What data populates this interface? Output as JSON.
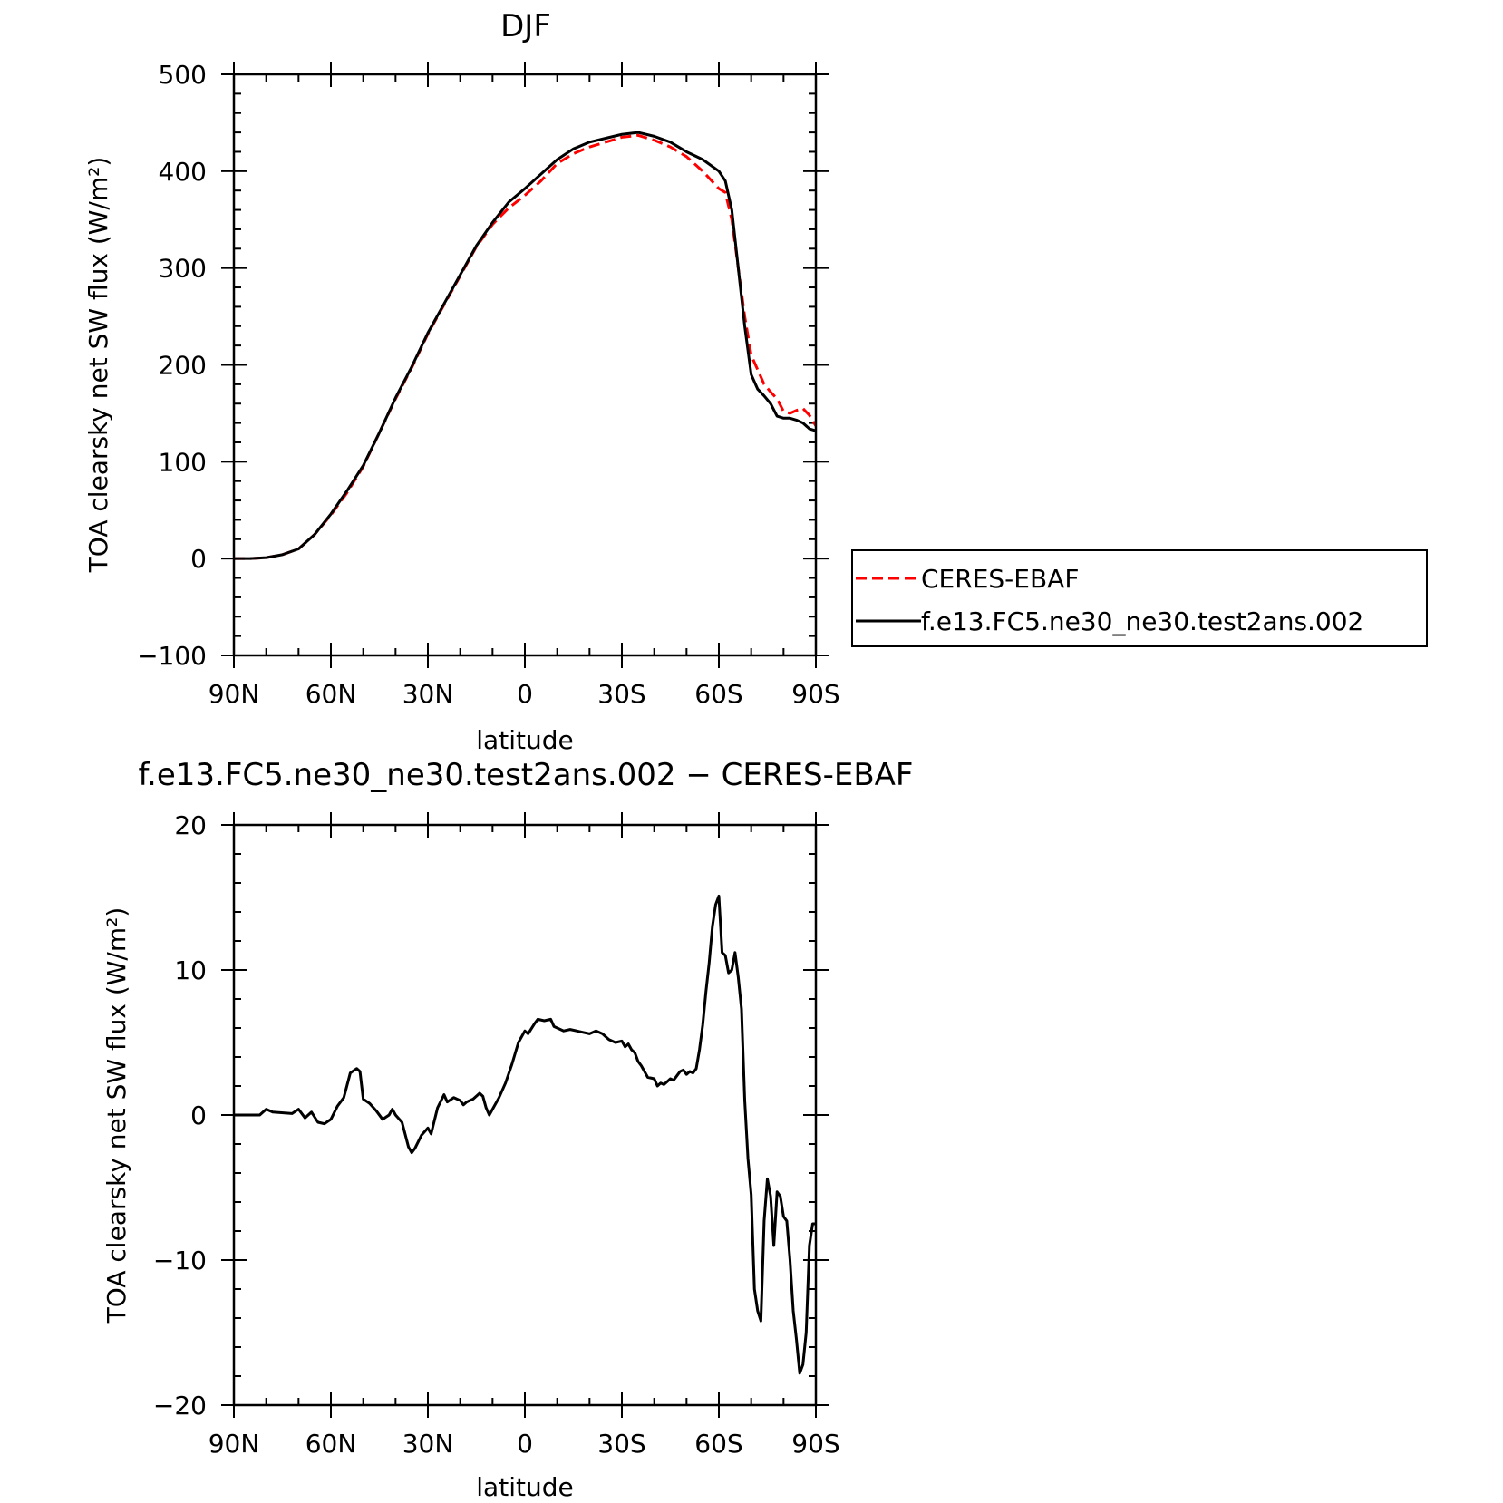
{
  "chart_data": [
    {
      "type": "line",
      "title": "DJF",
      "xlabel": "latitude",
      "ylabel": "TOA clearsky net SW flux (W/m²)",
      "xlim": [
        90,
        -90
      ],
      "ylim": [
        -100,
        500
      ],
      "x_ticks": [
        90,
        60,
        30,
        0,
        -30,
        -60,
        -90
      ],
      "x_tick_labels": [
        "90N",
        "60N",
        "30N",
        "0",
        "30S",
        "60S",
        "90S"
      ],
      "y_ticks": [
        -100,
        0,
        100,
        200,
        300,
        400,
        500
      ],
      "y_tick_labels": [
        "−100",
        "0",
        "100",
        "200",
        "300",
        "400",
        "500"
      ],
      "legend_position": "right",
      "series": [
        {
          "name": "CERES-EBAF",
          "color": "#ff0000",
          "dash": "dashed",
          "points": [
            [
              90,
              0
            ],
            [
              85,
              0
            ],
            [
              80,
              1
            ],
            [
              75,
              4
            ],
            [
              70,
              10
            ],
            [
              65,
              25
            ],
            [
              60,
              45
            ],
            [
              55,
              68
            ],
            [
              50,
              95
            ],
            [
              45,
              130
            ],
            [
              40,
              165
            ],
            [
              35,
              197
            ],
            [
              30,
              232
            ],
            [
              25,
              262
            ],
            [
              20,
              292
            ],
            [
              15,
              322
            ],
            [
              10,
              345
            ],
            [
              5,
              362
            ],
            [
              0,
              375
            ],
            [
              -5,
              390
            ],
            [
              -10,
              408
            ],
            [
              -15,
              418
            ],
            [
              -20,
              425
            ],
            [
              -25,
              430
            ],
            [
              -30,
              435
            ],
            [
              -35,
              437
            ],
            [
              -40,
              432
            ],
            [
              -45,
              425
            ],
            [
              -50,
              415
            ],
            [
              -55,
              400
            ],
            [
              -60,
              382
            ],
            [
              -62,
              378
            ],
            [
              -64,
              350
            ],
            [
              -66,
              300
            ],
            [
              -68,
              250
            ],
            [
              -70,
              210
            ],
            [
              -72,
              195
            ],
            [
              -74,
              180
            ],
            [
              -76,
              172
            ],
            [
              -78,
              165
            ],
            [
              -80,
              152
            ],
            [
              -82,
              150
            ],
            [
              -84,
              153
            ],
            [
              -86,
              155
            ],
            [
              -88,
              148
            ],
            [
              -90,
              137
            ]
          ]
        },
        {
          "name": "f.e13.FC5.ne30_ne30.test2ans.002",
          "color": "#000000",
          "dash": "solid",
          "points": [
            [
              90,
              0
            ],
            [
              85,
              0
            ],
            [
              80,
              1
            ],
            [
              75,
              4
            ],
            [
              70,
              10
            ],
            [
              65,
              25
            ],
            [
              60,
              46
            ],
            [
              55,
              70
            ],
            [
              50,
              96
            ],
            [
              45,
              130
            ],
            [
              40,
              166
            ],
            [
              35,
              198
            ],
            [
              30,
              233
            ],
            [
              25,
              263
            ],
            [
              20,
              293
            ],
            [
              15,
              323
            ],
            [
              10,
              347
            ],
            [
              5,
              368
            ],
            [
              0,
              382
            ],
            [
              -5,
              397
            ],
            [
              -10,
              412
            ],
            [
              -15,
              423
            ],
            [
              -20,
              430
            ],
            [
              -25,
              434
            ],
            [
              -30,
              438
            ],
            [
              -35,
              440
            ],
            [
              -40,
              436
            ],
            [
              -45,
              430
            ],
            [
              -50,
              420
            ],
            [
              -55,
              412
            ],
            [
              -60,
              400
            ],
            [
              -62,
              390
            ],
            [
              -64,
              360
            ],
            [
              -66,
              300
            ],
            [
              -68,
              240
            ],
            [
              -70,
              190
            ],
            [
              -72,
              175
            ],
            [
              -74,
              168
            ],
            [
              -76,
              160
            ],
            [
              -78,
              147
            ],
            [
              -80,
              145
            ],
            [
              -82,
              145
            ],
            [
              -84,
              143
            ],
            [
              -86,
              140
            ],
            [
              -88,
              134
            ],
            [
              -90,
              132
            ]
          ]
        }
      ]
    },
    {
      "type": "line",
      "title": "f.e13.FC5.ne30_ne30.test2ans.002 − CERES-EBAF",
      "xlabel": "latitude",
      "ylabel": "TOA clearsky net SW flux (W/m²)",
      "xlim": [
        90,
        -90
      ],
      "ylim": [
        -20,
        20
      ],
      "x_ticks": [
        90,
        60,
        30,
        0,
        -30,
        -60,
        -90
      ],
      "x_tick_labels": [
        "90N",
        "60N",
        "30N",
        "0",
        "30S",
        "60S",
        "90S"
      ],
      "y_ticks": [
        -20,
        -10,
        0,
        10,
        20
      ],
      "y_tick_labels": [
        "−20",
        "−10",
        "0",
        "10",
        "20"
      ],
      "series": [
        {
          "color": "#000000",
          "dash": "solid",
          "points": [
            [
              90,
              0
            ],
            [
              82,
              0
            ],
            [
              80,
              0.4
            ],
            [
              78,
              0.2
            ],
            [
              72,
              0.1
            ],
            [
              70,
              0.4
            ],
            [
              68,
              -0.2
            ],
            [
              66,
              0.2
            ],
            [
              64,
              -0.5
            ],
            [
              62,
              -0.6
            ],
            [
              60,
              -0.3
            ],
            [
              58,
              0.6
            ],
            [
              56,
              1.2
            ],
            [
              54,
              2.9
            ],
            [
              52,
              3.2
            ],
            [
              51,
              3.0
            ],
            [
              50,
              1.1
            ],
            [
              48,
              0.8
            ],
            [
              46,
              0.3
            ],
            [
              44,
              -0.3
            ],
            [
              42,
              0
            ],
            [
              41,
              0.4
            ],
            [
              40,
              0
            ],
            [
              38,
              -0.5
            ],
            [
              36,
              -2.2
            ],
            [
              35,
              -2.6
            ],
            [
              34,
              -2.3
            ],
            [
              32,
              -1.4
            ],
            [
              30,
              -0.9
            ],
            [
              29,
              -1.3
            ],
            [
              28,
              -0.4
            ],
            [
              27,
              0.5
            ],
            [
              25,
              1.4
            ],
            [
              24,
              0.9
            ],
            [
              22,
              1.2
            ],
            [
              20,
              1.0
            ],
            [
              19,
              0.7
            ],
            [
              18,
              0.9
            ],
            [
              16,
              1.1
            ],
            [
              14,
              1.5
            ],
            [
              13,
              1.3
            ],
            [
              12,
              0.5
            ],
            [
              11,
              0
            ],
            [
              10,
              0.4
            ],
            [
              8,
              1.2
            ],
            [
              6,
              2.2
            ],
            [
              4,
              3.5
            ],
            [
              2,
              5.0
            ],
            [
              0,
              5.8
            ],
            [
              -1,
              5.6
            ],
            [
              -3,
              6.3
            ],
            [
              -4,
              6.6
            ],
            [
              -6,
              6.5
            ],
            [
              -8,
              6.6
            ],
            [
              -9,
              6.1
            ],
            [
              -10,
              6.0
            ],
            [
              -12,
              5.8
            ],
            [
              -14,
              5.9
            ],
            [
              -16,
              5.8
            ],
            [
              -18,
              5.7
            ],
            [
              -20,
              5.6
            ],
            [
              -22,
              5.8
            ],
            [
              -24,
              5.6
            ],
            [
              -26,
              5.2
            ],
            [
              -28,
              5.0
            ],
            [
              -30,
              5.1
            ],
            [
              -31,
              4.7
            ],
            [
              -32,
              4.9
            ],
            [
              -33,
              4.5
            ],
            [
              -34,
              4.3
            ],
            [
              -35,
              3.7
            ],
            [
              -36,
              3.4
            ],
            [
              -38,
              2.6
            ],
            [
              -40,
              2.5
            ],
            [
              -41,
              2.0
            ],
            [
              -42,
              2.2
            ],
            [
              -43,
              2.1
            ],
            [
              -44,
              2.3
            ],
            [
              -45,
              2.5
            ],
            [
              -46,
              2.4
            ],
            [
              -47,
              2.7
            ],
            [
              -48,
              3.0
            ],
            [
              -49,
              3.1
            ],
            [
              -50,
              2.8
            ],
            [
              -51,
              3.0
            ],
            [
              -52,
              2.9
            ],
            [
              -53,
              3.2
            ],
            [
              -54,
              4.5
            ],
            [
              -55,
              6.2
            ],
            [
              -56,
              8.5
            ],
            [
              -57,
              10.5
            ],
            [
              -58,
              13.0
            ],
            [
              -59,
              14.5
            ],
            [
              -60,
              15.1
            ],
            [
              -61,
              11.2
            ],
            [
              -62,
              11.0
            ],
            [
              -63,
              9.8
            ],
            [
              -64,
              10.0
            ],
            [
              -65,
              11.2
            ],
            [
              -66,
              9.5
            ],
            [
              -67,
              7.3
            ],
            [
              -68,
              1.0
            ],
            [
              -69,
              -3.0
            ],
            [
              -70,
              -5.5
            ],
            [
              -71,
              -12.0
            ],
            [
              -72,
              -13.5
            ],
            [
              -73,
              -14.2
            ],
            [
              -74,
              -7.3
            ],
            [
              -75,
              -4.4
            ],
            [
              -76,
              -5.6
            ],
            [
              -77,
              -9.0
            ],
            [
              -78,
              -5.3
            ],
            [
              -79,
              -5.6
            ],
            [
              -80,
              -7.0
            ],
            [
              -81,
              -7.3
            ],
            [
              -82,
              -10.0
            ],
            [
              -83,
              -13.5
            ],
            [
              -84,
              -15.5
            ],
            [
              -85,
              -17.8
            ],
            [
              -86,
              -17.2
            ],
            [
              -87,
              -15.0
            ],
            [
              -88,
              -9.0
            ],
            [
              -89,
              -7.5
            ],
            [
              -90,
              -7.5
            ]
          ]
        }
      ]
    }
  ]
}
